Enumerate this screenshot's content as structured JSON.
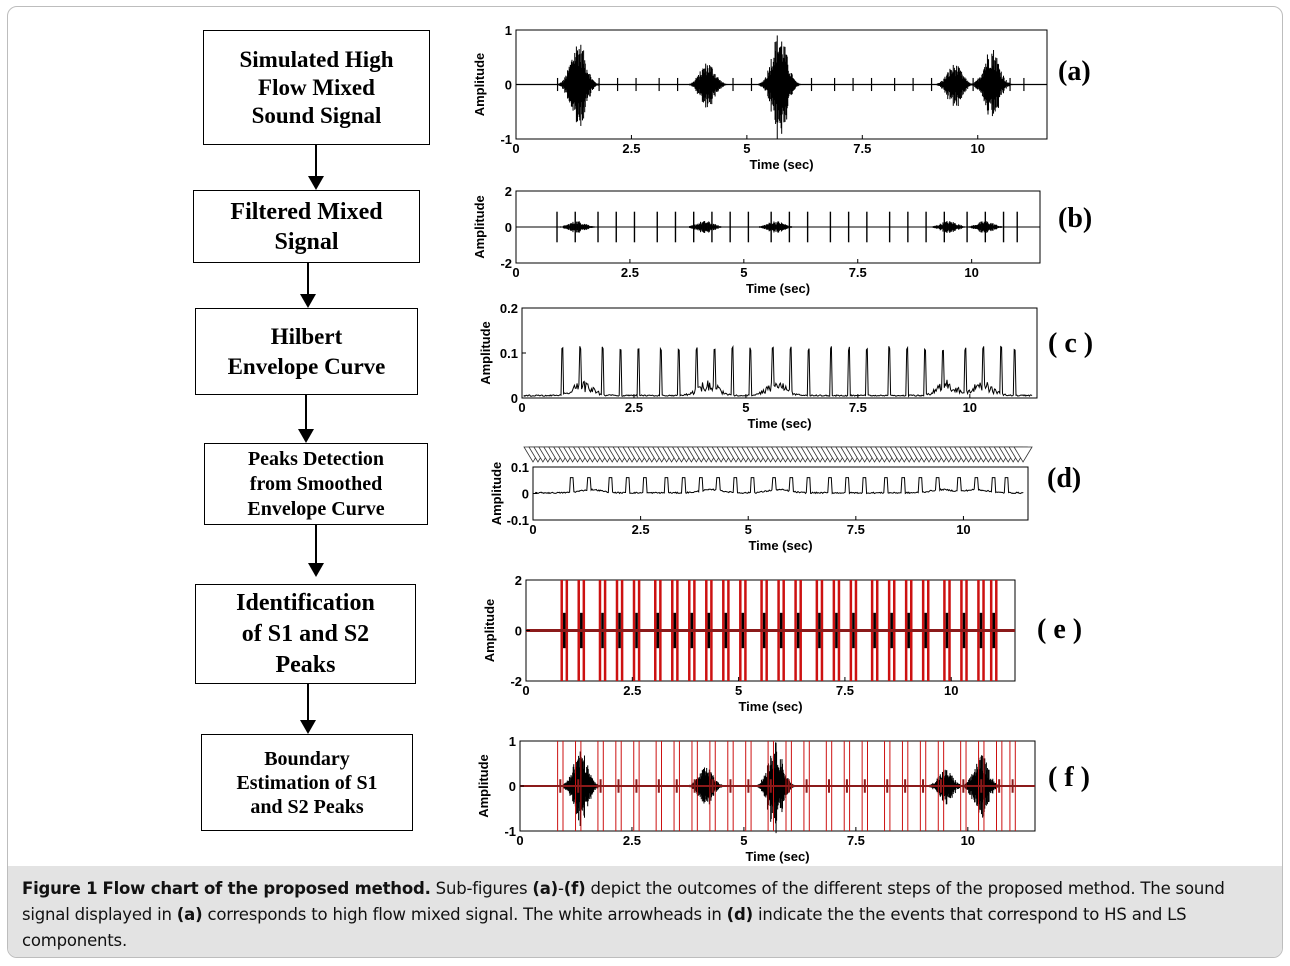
{
  "flow": {
    "steps": [
      "Simulated High\nFlow Mixed\nSound Signal",
      "Filtered Mixed\nSignal",
      "Hilbert\nEnvelope Curve",
      "Peaks Detection\nfrom Smoothed\nEnvelope Curve",
      "Identification\nof S1 and S2\nPeaks",
      "Boundary\nEstimation of S1\nand S2 Peaks"
    ]
  },
  "panels": [
    {
      "label": "(a)",
      "ylabel": "Amplitude",
      "xlabel": "Time (sec)",
      "yticks": [
        "1",
        "0",
        "-1"
      ],
      "ylim": [
        -1,
        1
      ],
      "xticks": [
        "0",
        "2.5",
        "5",
        "7.5",
        "10"
      ],
      "xlim": [
        0,
        11.5
      ],
      "kind": "mixed"
    },
    {
      "label": "(b)",
      "ylabel": "Amplitude",
      "xlabel": "Time (sec)",
      "yticks": [
        "2",
        "0",
        "-2"
      ],
      "ylim": [
        -2,
        2
      ],
      "xticks": [
        "0",
        "2.5",
        "5",
        "7.5",
        "10"
      ],
      "xlim": [
        0,
        11.5
      ],
      "kind": "filtered"
    },
    {
      "label": "( c )",
      "ylabel": "Amplitude",
      "xlabel": "Time (sec)",
      "yticks": [
        "0.2",
        "0.1",
        "0"
      ],
      "ylim": [
        0,
        0.2
      ],
      "xticks": [
        "0",
        "2.5",
        "5",
        "7.5",
        "10"
      ],
      "xlim": [
        0,
        11.5
      ],
      "kind": "envelope"
    },
    {
      "label": "(d)",
      "ylabel": "Amplitude",
      "xlabel": "Time (sec)",
      "yticks": [
        "0.1",
        "0",
        "-0.1"
      ],
      "ylim": [
        -0.1,
        0.1
      ],
      "xticks": [
        "0",
        "2.5",
        "5",
        "7.5",
        "10"
      ],
      "xlim": [
        0,
        11.5
      ],
      "kind": "peaks"
    },
    {
      "label": "( e )",
      "ylabel": "Amplitude",
      "xlabel": "Time (sec)",
      "yticks": [
        "2",
        "0",
        "-2"
      ],
      "ylim": [
        -2,
        2
      ],
      "xticks": [
        "0",
        "2.5",
        "5",
        "7.5",
        "10"
      ],
      "xlim": [
        0,
        11.5
      ],
      "kind": "identify"
    },
    {
      "label": "( f )",
      "ylabel": "Amplitude",
      "xlabel": "Time (sec)",
      "yticks": [
        "1",
        "0",
        "-1"
      ],
      "ylim": [
        -1,
        1
      ],
      "xticks": [
        "0",
        "2.5",
        "5",
        "7.5",
        "10"
      ],
      "xlim": [
        0,
        11.5
      ],
      "kind": "boundary"
    }
  ],
  "caption": {
    "fig_num": "Figure 1",
    "fig_title": "Flow chart of the proposed method.",
    "text_1": " Sub-figures ",
    "ref_a1": "(a)",
    "text_2": "-",
    "ref_f": "(f)",
    "text_3": " depict the outcomes of the different steps of the proposed method. The sound signal displayed in ",
    "ref_a2": "(a)",
    "text_4": " corresponds to high flow mixed signal. The white arrowheads in ",
    "ref_d": "(d)",
    "text_5": " indicate the the events that correspond to HS and LS components."
  },
  "colors": {
    "signal": "#000000",
    "boundary": "#cc1111",
    "boundary_fill": "#8b1a1a"
  }
}
